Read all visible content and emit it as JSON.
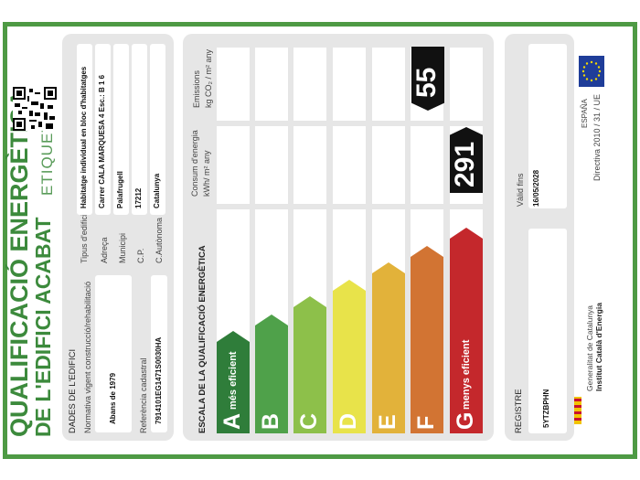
{
  "header": {
    "title_line1": "QUALIFICACIÓ ENERGÈTICA",
    "title_line2": "DE L'EDIFICI ACABAT",
    "label": "ETIQUETA"
  },
  "building": {
    "section_title": "DADES DE L'EDIFICI",
    "normativa_label": "Normativa vigent construcció/rehabilitació",
    "normativa_value": "Abans de 1979",
    "referencia_label": "Referència cadastral",
    "referencia_value": "7914101EG1471S0030HA",
    "tipus_label": "Tipus d'edifici",
    "tipus_value": "Habitatge individual en bloc d'habitatges",
    "adreca_label": "Adreça",
    "adreca_value": "Carrer CALA MARQUESA 4 Esc.: B 1 6",
    "municipi_label": "Municipi",
    "municipi_value": "Palafrugell",
    "cp_label": "C.P.",
    "cp_value": "17212",
    "comunitat_label": "C.Autònoma",
    "comunitat_value": "Catalunya"
  },
  "scale": {
    "title": "ESCALA DE LA QUALIFICACIÓ ENERGÈTICA",
    "col_consum_line1": "Consum d'energia",
    "col_consum_line2": "kWh/ m² any",
    "col_emissions_line1": "Emissions",
    "col_emissions_line2": "kg CO₂ / m² any",
    "grades": [
      {
        "letter": "A",
        "sub": "més eficient",
        "color": "#2f7d3a"
      },
      {
        "letter": "B",
        "sub": "",
        "color": "#4fa14a"
      },
      {
        "letter": "C",
        "sub": "",
        "color": "#8dc04a"
      },
      {
        "letter": "D",
        "sub": "",
        "color": "#e8e34a"
      },
      {
        "letter": "E",
        "sub": "",
        "color": "#e2b23a"
      },
      {
        "letter": "F",
        "sub": "",
        "color": "#d27433"
      },
      {
        "letter": "G",
        "sub": "menys eficient",
        "color": "#c4282c"
      }
    ],
    "consum_value": "291",
    "emissions_value": "55"
  },
  "registry": {
    "title": "REGISTRE",
    "code": "5YTZBPHN",
    "valid_label": "Vàlid fins",
    "valid_value": "16/05/2028"
  },
  "footer": {
    "country": "ESPAÑA",
    "directive": "Directiva 2010 / 31 / UE",
    "org_line1": "Generalitat de Catalunya",
    "org_line2": "Institut Català d'Energia"
  }
}
